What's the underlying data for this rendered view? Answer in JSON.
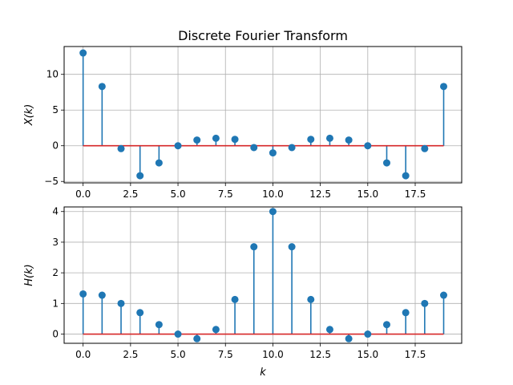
{
  "chart_data": [
    {
      "type": "stem",
      "title": "Discrete Fourier Transform",
      "xlabel": "",
      "ylabel": "X(k)",
      "x": [
        0,
        1,
        2,
        3,
        4,
        5,
        6,
        7,
        8,
        9,
        10,
        11,
        12,
        13,
        14,
        15,
        16,
        17,
        18,
        19
      ],
      "values": [
        13.0,
        8.3,
        -0.4,
        -4.2,
        -2.4,
        0.0,
        0.8,
        1.05,
        0.9,
        -0.25,
        -1.0,
        -0.25,
        0.9,
        1.05,
        0.8,
        0.0,
        -2.4,
        -4.2,
        -0.4,
        8.3
      ],
      "xlim": [
        -1.0,
        19.95
      ],
      "ylim": [
        -5.2,
        13.9
      ],
      "xticks": [
        0,
        2.5,
        5,
        7.5,
        10,
        12.5,
        15,
        17.5
      ],
      "xtick_labels": [
        "0.0",
        "2.5",
        "5.0",
        "7.5",
        "10.0",
        "12.5",
        "15.0",
        "17.5"
      ],
      "yticks": [
        -5,
        0,
        5,
        10
      ],
      "ytick_labels": [
        "−5",
        "0",
        "5",
        "10"
      ],
      "grid": true,
      "colors": {
        "stem": "#1f77b4",
        "baseline": "#d62728"
      }
    },
    {
      "type": "stem",
      "title": "",
      "xlabel": "k",
      "ylabel": "H(k)",
      "x": [
        0,
        1,
        2,
        3,
        4,
        5,
        6,
        7,
        8,
        9,
        10,
        11,
        12,
        13,
        14,
        15,
        16,
        17,
        18,
        19
      ],
      "values": [
        1.31,
        1.27,
        1.0,
        0.7,
        0.31,
        0.0,
        -0.15,
        0.15,
        1.13,
        2.85,
        4.0,
        2.85,
        1.13,
        0.15,
        -0.15,
        0.0,
        0.31,
        0.7,
        1.0,
        1.27
      ],
      "xlim": [
        -1.0,
        19.95
      ],
      "ylim": [
        -0.3,
        4.15
      ],
      "xticks": [
        0,
        2.5,
        5,
        7.5,
        10,
        12.5,
        15,
        17.5
      ],
      "xtick_labels": [
        "0.0",
        "2.5",
        "5.0",
        "7.5",
        "10.0",
        "12.5",
        "15.0",
        "17.5"
      ],
      "yticks": [
        0,
        1,
        2,
        3,
        4
      ],
      "ytick_labels": [
        "0",
        "1",
        "2",
        "3",
        "4"
      ],
      "grid": true,
      "colors": {
        "stem": "#1f77b4",
        "baseline": "#d62728"
      }
    }
  ]
}
